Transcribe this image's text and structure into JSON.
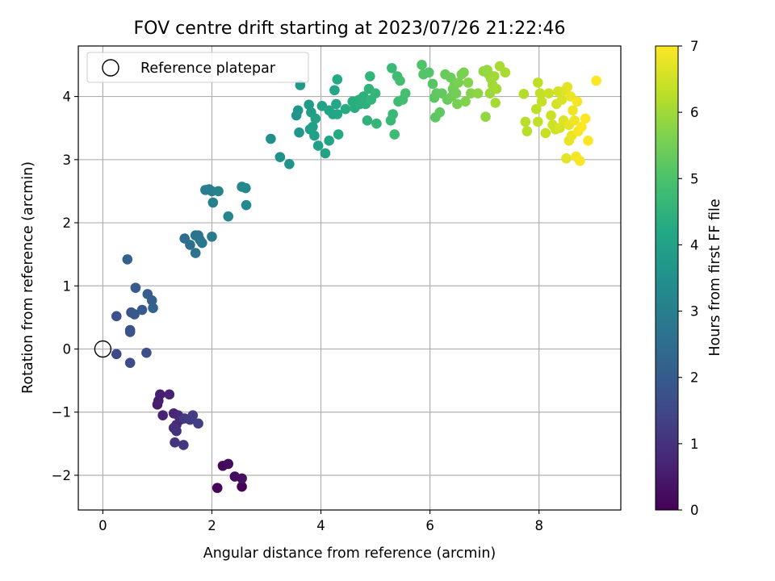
{
  "chart_data": {
    "type": "scatter",
    "title": "FOV centre drift starting at 2023/07/26 21:22:46",
    "xlabel": "Angular distance from reference (arcmin)",
    "ylabel": "Rotation from reference (arcmin)",
    "xlim": [
      -0.45,
      9.5
    ],
    "ylim": [
      -2.55,
      4.8
    ],
    "x_ticks": [
      0,
      2,
      4,
      6,
      8
    ],
    "y_ticks": [
      -2,
      -1,
      0,
      1,
      2,
      3,
      4
    ],
    "grid": true,
    "legend": {
      "position": "top-left",
      "entries": [
        "Reference platepar"
      ]
    },
    "reference_point": {
      "x": 0,
      "y": 0,
      "label": "Reference platepar"
    },
    "colorbar": {
      "label": "Hours from first FF file",
      "range": [
        0,
        7
      ],
      "ticks": [
        0,
        1,
        2,
        3,
        4,
        5,
        6,
        7
      ],
      "colormap": "viridis"
    },
    "points": [
      [
        2.55,
        -2.18,
        0.05
      ],
      [
        2.1,
        -2.2,
        0.1
      ],
      [
        2.2,
        -1.85,
        0.15
      ],
      [
        2.3,
        -1.82,
        0.2
      ],
      [
        2.42,
        -2.02,
        0.25
      ],
      [
        2.55,
        -2.05,
        0.3
      ],
      [
        1.0,
        -0.88,
        0.5
      ],
      [
        1.02,
        -0.82,
        0.55
      ],
      [
        1.05,
        -0.72,
        0.6
      ],
      [
        1.22,
        -0.72,
        0.65
      ],
      [
        1.1,
        -1.05,
        0.7
      ],
      [
        1.3,
        -1.02,
        0.75
      ],
      [
        1.38,
        -1.05,
        0.8
      ],
      [
        1.42,
        -1.12,
        0.85
      ],
      [
        1.35,
        -1.2,
        0.9
      ],
      [
        1.3,
        -1.25,
        0.95
      ],
      [
        1.35,
        -1.3,
        1.0
      ],
      [
        1.32,
        -1.48,
        1.05
      ],
      [
        1.48,
        -1.52,
        1.1
      ],
      [
        1.5,
        -1.1,
        1.15
      ],
      [
        1.6,
        -1.12,
        1.2
      ],
      [
        1.65,
        -1.05,
        1.25
      ],
      [
        1.75,
        -1.18,
        1.3
      ],
      [
        0.25,
        -0.08,
        1.55
      ],
      [
        0.5,
        -0.22,
        1.6
      ],
      [
        0.8,
        -0.06,
        1.65
      ],
      [
        0.25,
        0.52,
        1.7
      ],
      [
        0.5,
        0.3,
        1.75
      ],
      [
        0.5,
        0.27,
        1.8
      ],
      [
        0.52,
        0.58,
        1.85
      ],
      [
        0.58,
        0.55,
        1.9
      ],
      [
        0.72,
        0.62,
        1.95
      ],
      [
        0.6,
        0.97,
        2.0
      ],
      [
        0.82,
        0.87,
        2.05
      ],
      [
        0.9,
        0.77,
        2.1
      ],
      [
        0.92,
        0.65,
        2.15
      ],
      [
        0.45,
        1.42,
        2.2
      ],
      [
        1.5,
        1.75,
        2.5
      ],
      [
        1.6,
        1.65,
        2.55
      ],
      [
        1.7,
        1.52,
        2.6
      ],
      [
        1.7,
        1.8,
        2.65
      ],
      [
        1.75,
        1.8,
        2.7
      ],
      [
        1.78,
        1.73,
        2.75
      ],
      [
        1.82,
        1.68,
        2.8
      ],
      [
        2.0,
        1.78,
        2.85
      ],
      [
        1.88,
        2.52,
        2.9
      ],
      [
        1.95,
        2.53,
        2.95
      ],
      [
        2.0,
        2.5,
        3.0
      ],
      [
        2.02,
        2.32,
        3.05
      ],
      [
        2.12,
        2.5,
        3.1
      ],
      [
        2.3,
        2.1,
        3.15
      ],
      [
        2.55,
        2.57,
        3.2
      ],
      [
        2.62,
        2.55,
        3.25
      ],
      [
        2.63,
        2.28,
        3.3
      ],
      [
        3.08,
        3.33,
        3.45
      ],
      [
        3.25,
        3.04,
        3.5
      ],
      [
        3.42,
        2.93,
        3.55
      ],
      [
        3.55,
        3.7,
        3.6
      ],
      [
        3.58,
        3.78,
        3.65
      ],
      [
        3.6,
        3.43,
        3.7
      ],
      [
        3.62,
        4.18,
        3.75
      ],
      [
        3.78,
        3.87,
        3.8
      ],
      [
        3.8,
        3.48,
        3.85
      ],
      [
        3.82,
        3.75,
        3.9
      ],
      [
        3.85,
        3.52,
        3.95
      ],
      [
        3.88,
        3.38,
        3.95
      ],
      [
        3.9,
        3.65,
        4.0
      ],
      [
        3.95,
        3.22,
        4.0
      ],
      [
        4.02,
        3.85,
        4.05
      ],
      [
        4.08,
        3.1,
        4.05
      ],
      [
        4.15,
        3.3,
        4.1
      ],
      [
        4.15,
        3.78,
        4.1
      ],
      [
        4.22,
        3.72,
        4.15
      ],
      [
        4.25,
        4.1,
        4.15
      ],
      [
        4.28,
        3.88,
        4.2
      ],
      [
        4.3,
        3.72,
        4.2
      ],
      [
        4.3,
        4.27,
        4.25
      ],
      [
        4.32,
        3.4,
        4.25
      ],
      [
        4.45,
        3.8,
        4.3
      ],
      [
        4.58,
        3.92,
        4.35
      ],
      [
        4.62,
        3.82,
        4.35
      ],
      [
        4.7,
        3.95,
        4.4
      ],
      [
        4.72,
        3.88,
        4.4
      ],
      [
        4.78,
        4.0,
        4.45
      ],
      [
        4.82,
        3.88,
        4.45
      ],
      [
        4.85,
        3.62,
        4.5
      ],
      [
        4.88,
        4.12,
        4.5
      ],
      [
        4.9,
        4.32,
        4.55
      ],
      [
        4.92,
        3.95,
        4.55
      ],
      [
        5.0,
        4.05,
        4.6
      ],
      [
        5.02,
        3.57,
        4.6
      ],
      [
        5.28,
        3.62,
        4.65
      ],
      [
        5.3,
        4.45,
        4.7
      ],
      [
        5.32,
        3.72,
        4.7
      ],
      [
        5.35,
        3.4,
        4.75
      ],
      [
        5.4,
        4.32,
        4.75
      ],
      [
        5.42,
        3.92,
        4.8
      ],
      [
        5.45,
        4.25,
        4.85
      ],
      [
        5.5,
        3.95,
        4.85
      ],
      [
        5.55,
        4.05,
        4.9
      ],
      [
        5.85,
        4.5,
        5.05
      ],
      [
        5.88,
        4.35,
        5.1
      ],
      [
        5.98,
        4.38,
        5.1
      ],
      [
        6.05,
        4.2,
        5.15
      ],
      [
        6.08,
        3.98,
        5.2
      ],
      [
        6.1,
        3.67,
        5.2
      ],
      [
        6.12,
        4.05,
        5.25
      ],
      [
        6.18,
        3.75,
        5.25
      ],
      [
        6.22,
        4.05,
        5.3
      ],
      [
        6.28,
        4.35,
        5.35
      ],
      [
        6.32,
        3.95,
        5.35
      ],
      [
        6.38,
        4.3,
        5.4
      ],
      [
        6.4,
        4.0,
        5.45
      ],
      [
        6.42,
        4.12,
        5.45
      ],
      [
        6.45,
        4.18,
        5.5
      ],
      [
        6.48,
        4.05,
        5.5
      ],
      [
        6.5,
        3.88,
        5.55
      ],
      [
        6.52,
        4.22,
        5.55
      ],
      [
        6.58,
        4.35,
        5.6
      ],
      [
        6.62,
        4.38,
        5.6
      ],
      [
        6.65,
        3.92,
        5.65
      ],
      [
        6.7,
        4.22,
        5.7
      ],
      [
        6.75,
        4.05,
        5.7
      ],
      [
        6.88,
        4.05,
        5.8
      ],
      [
        6.98,
        4.4,
        5.85
      ],
      [
        7.02,
        3.68,
        5.85
      ],
      [
        7.05,
        4.42,
        5.9
      ],
      [
        7.08,
        4.35,
        5.9
      ],
      [
        7.1,
        4.05,
        5.95
      ],
      [
        7.12,
        4.28,
        5.95
      ],
      [
        7.15,
        4.18,
        6.0
      ],
      [
        7.18,
        4.32,
        6.0
      ],
      [
        7.2,
        3.9,
        6.05
      ],
      [
        7.22,
        4.12,
        6.05
      ],
      [
        7.28,
        4.48,
        6.1
      ],
      [
        7.38,
        4.38,
        6.1
      ],
      [
        7.72,
        4.04,
        6.2
      ],
      [
        7.75,
        3.6,
        6.25
      ],
      [
        7.78,
        3.45,
        6.25
      ],
      [
        7.95,
        3.8,
        6.3
      ],
      [
        7.98,
        4.22,
        6.3
      ],
      [
        7.98,
        3.6,
        6.35
      ],
      [
        8.02,
        4.05,
        6.35
      ],
      [
        8.05,
        3.92,
        6.4
      ],
      [
        8.12,
        3.42,
        6.4
      ],
      [
        8.18,
        4.05,
        6.45
      ],
      [
        8.22,
        3.7,
        6.45
      ],
      [
        8.25,
        3.55,
        6.5
      ],
      [
        8.3,
        3.48,
        6.5
      ],
      [
        8.32,
        3.88,
        6.55
      ],
      [
        8.35,
        4.08,
        6.55
      ],
      [
        8.38,
        3.5,
        6.6
      ],
      [
        8.42,
        3.95,
        6.6
      ],
      [
        8.45,
        3.62,
        6.65
      ],
      [
        8.48,
        4.1,
        6.65
      ],
      [
        8.5,
        3.02,
        6.7
      ],
      [
        8.52,
        4.15,
        6.7
      ],
      [
        8.55,
        3.3,
        6.75
      ],
      [
        8.55,
        3.55,
        6.75
      ],
      [
        8.58,
        4.0,
        6.8
      ],
      [
        8.6,
        3.38,
        6.8
      ],
      [
        8.62,
        3.78,
        6.85
      ],
      [
        8.65,
        3.62,
        6.85
      ],
      [
        8.68,
        3.05,
        6.9
      ],
      [
        8.7,
        3.92,
        6.9
      ],
      [
        8.72,
        3.45,
        6.95
      ],
      [
        8.75,
        2.98,
        6.95
      ],
      [
        8.78,
        3.52,
        7.0
      ],
      [
        8.85,
        3.65,
        7.0
      ],
      [
        8.9,
        3.3,
        7.0
      ],
      [
        9.05,
        4.25,
        7.05
      ]
    ]
  }
}
